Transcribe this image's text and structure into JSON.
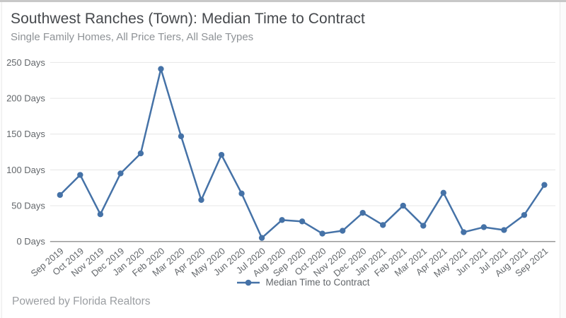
{
  "page": {
    "title": "Southwest Ranches (Town): Median Time to Contract",
    "subtitle": "Single Family Homes, All Price Tiers, All Sale Types",
    "footer": "Powered by Florida Realtors"
  },
  "colors": {
    "series": "#4572a7",
    "title": "#45484c",
    "subtitle": "#8e9296",
    "axis_label": "#63676b",
    "gridline": "#e6e6e6",
    "axis_line": "#999999",
    "footer": "#9b9ea2",
    "top_strip": "#c8c8c8"
  },
  "chart_data": {
    "type": "line",
    "title": "Southwest Ranches (Town): Median Time to Contract",
    "subtitle": "Single Family Homes, All Price Tiers, All Sale Types",
    "categories": [
      "Sep 2019",
      "Oct 2019",
      "Nov 2019",
      "Dec 2019",
      "Jan 2020",
      "Feb 2020",
      "Mar 2020",
      "Apr 2020",
      "May 2020",
      "Jun 2020",
      "Jul 2020",
      "Aug 2020",
      "Sep 2020",
      "Oct 2020",
      "Nov 2020",
      "Dec 2020",
      "Jan 2021",
      "Feb 2021",
      "Mar 2021",
      "Apr 2021",
      "May 2021",
      "Jun 2021",
      "Jul 2021",
      "Aug 2021",
      "Sep 2021"
    ],
    "series": [
      {
        "name": "Median Time to Contract",
        "values": [
          65,
          93,
          38,
          95,
          123,
          241,
          147,
          58,
          121,
          67,
          5,
          30,
          28,
          11,
          15,
          40,
          23,
          50,
          22,
          68,
          13,
          20,
          16,
          37,
          79
        ]
      }
    ],
    "xlabel": "",
    "ylabel": "Days",
    "ylim": [
      0,
      250
    ],
    "ytick_interval": 50,
    "ytick_suffix": " Days",
    "grid": true,
    "marker": "circle",
    "legend_position": "bottom-center",
    "x_label_rotation": -40
  }
}
